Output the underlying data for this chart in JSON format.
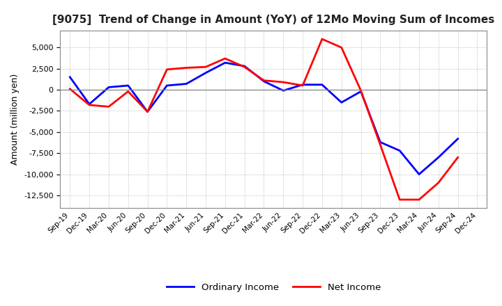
{
  "title": "[9075]  Trend of Change in Amount (YoY) of 12Mo Moving Sum of Incomes",
  "ylabel": "Amount (million yen)",
  "x_labels": [
    "Sep-19",
    "Dec-19",
    "Mar-20",
    "Jun-20",
    "Sep-20",
    "Dec-20",
    "Mar-21",
    "Jun-21",
    "Sep-21",
    "Dec-21",
    "Mar-22",
    "Jun-22",
    "Sep-22",
    "Dec-22",
    "Mar-23",
    "Jun-23",
    "Sep-23",
    "Dec-23",
    "Mar-24",
    "Jun-24",
    "Sep-24",
    "Dec-24"
  ],
  "ordinary_income": [
    1500,
    -1700,
    300,
    500,
    -2600,
    500,
    700,
    2000,
    3200,
    2800,
    1000,
    -100,
    600,
    600,
    -1500,
    -200,
    -6200,
    -7200,
    -10000,
    -8000,
    -5800,
    null
  ],
  "net_income": [
    100,
    -1800,
    -2000,
    -200,
    -2600,
    2400,
    2600,
    2700,
    3700,
    2700,
    1100,
    900,
    500,
    6000,
    5000,
    -100,
    -6500,
    -13000,
    -13000,
    -11000,
    -8000,
    null
  ],
  "ordinary_income_color": "#0000ff",
  "net_income_color": "#ff0000",
  "background_color": "#ffffff",
  "plot_bg_color": "#ffffff",
  "grid_color": "#aaaaaa",
  "ylim": [
    -14000,
    7000
  ],
  "yticks": [
    -12500,
    -10000,
    -7500,
    -5000,
    -2500,
    0,
    2500,
    5000
  ],
  "legend_labels": [
    "Ordinary Income",
    "Net Income"
  ],
  "linewidth": 2.0
}
